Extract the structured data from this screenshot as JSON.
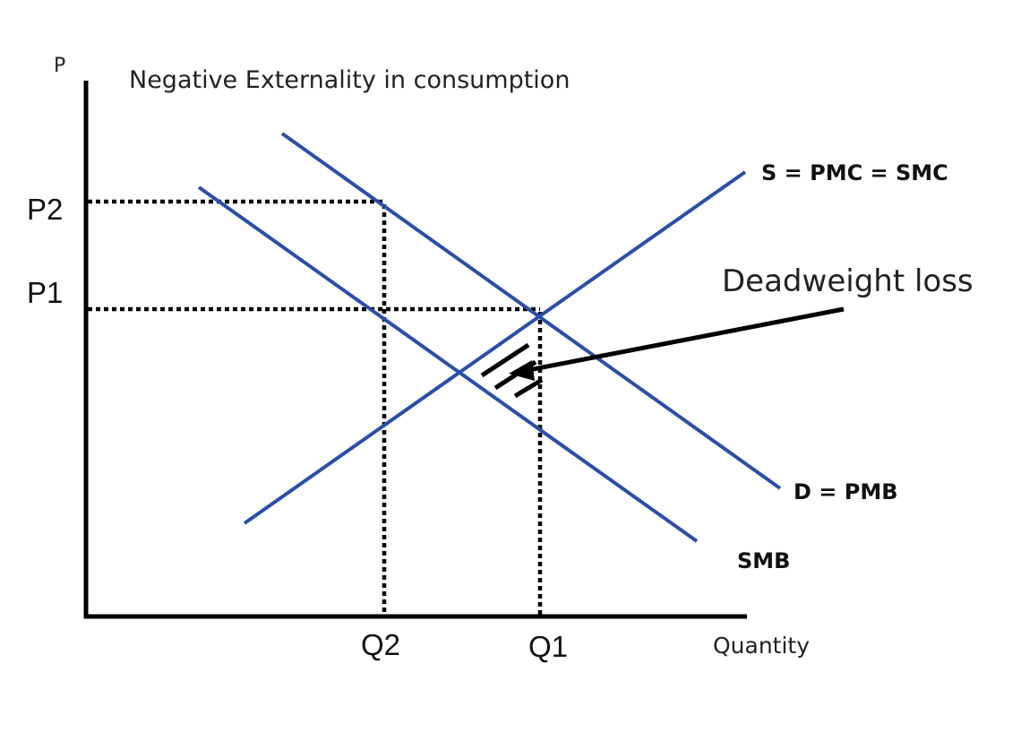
{
  "diagram": {
    "title": "Negative Externality in consumption",
    "y_axis_label": "P",
    "x_axis_label": "Quantity",
    "price_labels": {
      "p2": "P2",
      "p1": "P1"
    },
    "quantity_labels": {
      "q2": "Q2",
      "q1": "Q1"
    },
    "curve_labels": {
      "supply": "S = PMC = SMC",
      "demand": "D = PMB",
      "smb": "SMB"
    },
    "annotation": "Deadweight loss",
    "colors": {
      "curve": "#2B4FA5",
      "axis": "#000000",
      "guide": "#000000"
    }
  }
}
